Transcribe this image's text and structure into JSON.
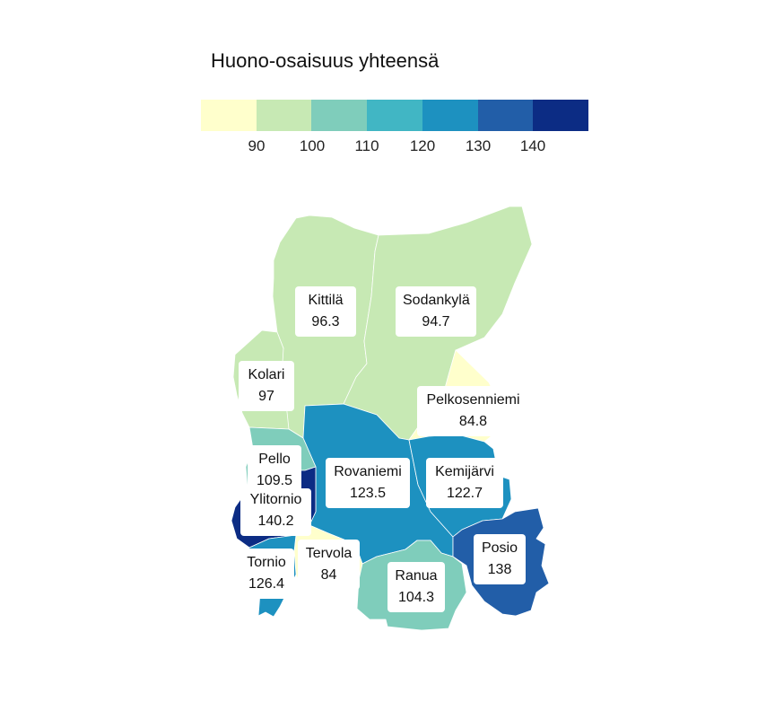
{
  "title": "Huono-osaisuus yhteensä",
  "legend": {
    "colors": [
      "#ffffcc",
      "#c7e9b4",
      "#7fcdbb",
      "#41b6c4",
      "#1d91c0",
      "#225ea8",
      "#0c2c84"
    ],
    "ticks": [
      "90",
      "100",
      "110",
      "120",
      "130",
      "140"
    ]
  },
  "regions": [
    {
      "name": "Kittilä",
      "value": "96.3",
      "color": "#c7e9b4"
    },
    {
      "name": "Sodankylä",
      "value": "94.7",
      "color": "#c7e9b4"
    },
    {
      "name": "Kolari",
      "value": "97",
      "color": "#c7e9b4"
    },
    {
      "name": "Pelkosenniemi",
      "value": "84.8",
      "color": "#ffffcc"
    },
    {
      "name": "Pello",
      "value": "109.5",
      "color": "#7fcdbb"
    },
    {
      "name": "Rovaniemi",
      "value": "123.5",
      "color": "#1d91c0"
    },
    {
      "name": "Kemijärvi",
      "value": "122.7",
      "color": "#1d91c0"
    },
    {
      "name": "Ylitornio",
      "value": "140.2",
      "color": "#0c2c84"
    },
    {
      "name": "Posio",
      "value": "138",
      "color": "#225ea8"
    },
    {
      "name": "Tervola",
      "value": "84",
      "color": "#ffffcc"
    },
    {
      "name": "Tornio",
      "value": "126.4",
      "color": "#1d91c0"
    },
    {
      "name": "Ranua",
      "value": "104.3",
      "color": "#7fcdbb"
    }
  ]
}
